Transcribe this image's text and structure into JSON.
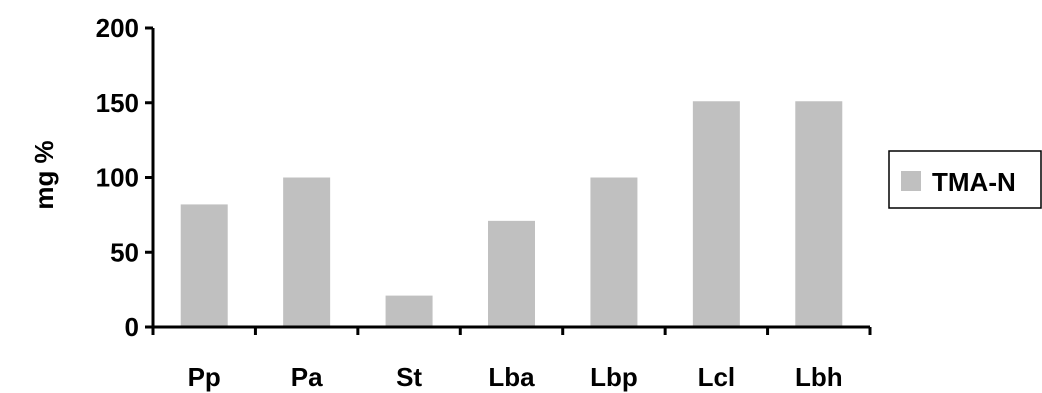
{
  "chart_data": {
    "type": "bar",
    "categories": [
      "Pp",
      "Pa",
      "St",
      "Lba",
      "Lbp",
      "Lcl",
      "Lbh"
    ],
    "series": [
      {
        "name": "TMA-N",
        "values": [
          82,
          100,
          21,
          71,
          100,
          151,
          151
        ],
        "color": "#c0c0c0"
      }
    ],
    "title": "",
    "xlabel": "",
    "ylabel": "mg %",
    "ylim": [
      0,
      200
    ],
    "yticks": [
      0,
      50,
      100,
      150,
      200
    ],
    "grid": false,
    "legend_position": "right"
  }
}
